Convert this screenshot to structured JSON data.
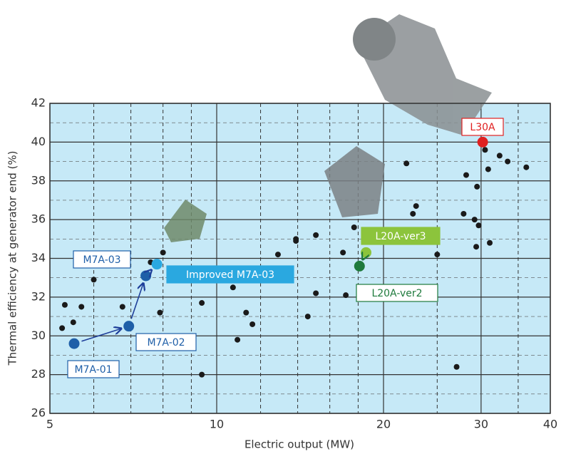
{
  "chart_data": {
    "type": "scatter",
    "x_label": "Electric output (MW)",
    "y_label": "Thermal efficiency at generator end (%)",
    "xscale": "log",
    "xlim": [
      5,
      40
    ],
    "ylim": [
      26,
      42
    ],
    "xticks": [
      5,
      10,
      20,
      30,
      40
    ],
    "yticks": [
      26,
      28,
      30,
      32,
      34,
      36,
      38,
      40,
      42
    ],
    "x_minor_grid": [
      6,
      7,
      8,
      9,
      12,
      14,
      16,
      18,
      25,
      35
    ],
    "y_minor_grid": [
      27,
      29,
      31,
      33,
      35,
      37,
      39,
      41
    ],
    "grid": true,
    "background": "#c6e9f7",
    "points": {
      "color": "#1a1a1a",
      "x": [
        5.26,
        5.32,
        5.51,
        5.7,
        6.0,
        6.76,
        7.6,
        7.9,
        8.0,
        9.4,
        9.4,
        10.7,
        10.9,
        11.3,
        11.6,
        12.9,
        13.9,
        13.9,
        14.6,
        15.1,
        15.1,
        16.9,
        17.1,
        17.7,
        22.0,
        22.6,
        22.9,
        25.0,
        27.1,
        27.9,
        28.2,
        29.2,
        29.5,
        29.7,
        29.4,
        30.5,
        30.9,
        31.1,
        32.4,
        33.5,
        36.2
      ],
      "y": [
        30.4,
        31.6,
        30.7,
        31.5,
        32.9,
        31.5,
        33.8,
        31.2,
        34.3,
        31.7,
        28.0,
        32.5,
        29.8,
        31.2,
        30.6,
        34.2,
        35.0,
        34.9,
        31.0,
        35.2,
        32.2,
        34.3,
        32.1,
        35.6,
        38.9,
        36.3,
        36.7,
        34.2,
        28.4,
        36.3,
        38.3,
        36.0,
        37.7,
        35.7,
        34.6,
        39.6,
        38.6,
        34.8,
        39.3,
        39.0,
        38.7
      ]
    },
    "highlights": [
      {
        "name": "M7A-01",
        "color": "#1f5fa8",
        "x": 5.53,
        "y": 29.6
      },
      {
        "name": "M7A-02",
        "color": "#1f5fa8",
        "x": 6.94,
        "y": 30.5
      },
      {
        "name": "M7A-03",
        "color": "#1f5fa8",
        "x": 7.45,
        "y": 33.1
      },
      {
        "name": "Improved M7A-03",
        "color": "#2aa8e0",
        "x": 7.8,
        "y": 33.7
      },
      {
        "name": "L20A-ver2",
        "color": "#1e7a3c",
        "x": 18.1,
        "y": 33.6
      },
      {
        "name": "L20A-ver3",
        "color": "#8cc43c",
        "x": 18.6,
        "y": 34.3
      },
      {
        "name": "L30A",
        "color": "#e02020",
        "x": 30.2,
        "y": 40.0
      }
    ]
  }
}
